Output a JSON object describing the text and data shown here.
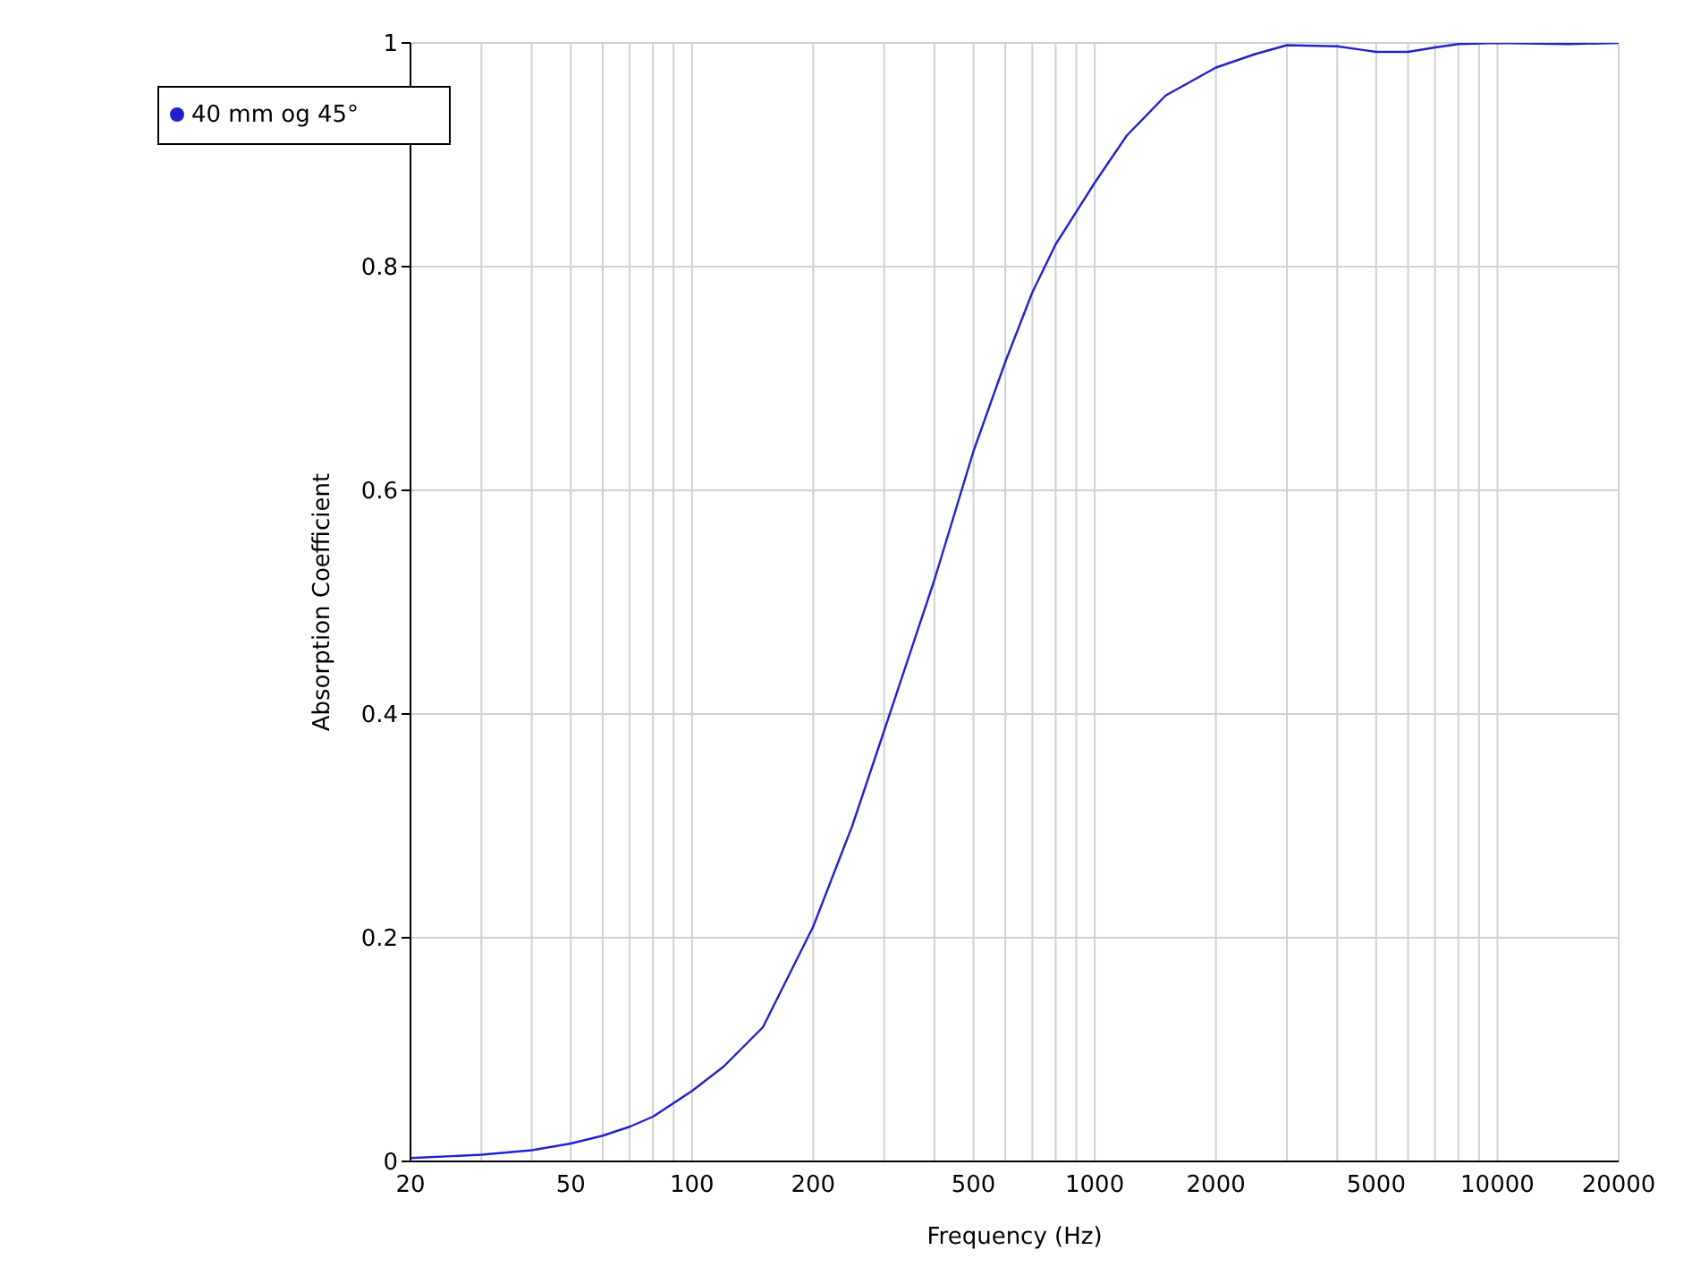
{
  "chart_data": {
    "type": "line",
    "xlabel": "Frequency (Hz)",
    "ylabel": "Absorption Coefficient",
    "log": "x",
    "grid": true,
    "legend": "top left",
    "xlim": [
      20,
      20000
    ],
    "ylim": [
      0,
      1
    ],
    "xticks": [
      20,
      {
        "value": 30,
        "label": null
      },
      {
        "value": 40,
        "label": null
      },
      50,
      {
        "value": 60,
        "label": null
      },
      {
        "value": 70,
        "label": null
      },
      {
        "value": 80,
        "label": null
      },
      {
        "value": 90,
        "label": null
      },
      100,
      200,
      {
        "value": 300,
        "label": null
      },
      {
        "value": 400,
        "label": null
      },
      500,
      {
        "value": 600,
        "label": null
      },
      {
        "value": 700,
        "label": null
      },
      {
        "value": 800,
        "label": null
      },
      {
        "value": 900,
        "label": null
      },
      1000,
      2000,
      {
        "value": 3000,
        "label": null
      },
      {
        "value": 4000,
        "label": null
      },
      5000,
      {
        "value": 6000,
        "label": null
      },
      {
        "value": 7000,
        "label": null
      },
      {
        "value": 8000,
        "label": null
      },
      {
        "value": 9000,
        "label": null
      },
      10000,
      20000
    ],
    "yticks": [
      0,
      0.2,
      0.4,
      0.6,
      0.8,
      1
    ],
    "series": [
      {
        "name": "40 mm og 45°",
        "color": "#2222cc",
        "x": [
          20,
          30,
          40,
          50,
          60,
          70,
          80,
          100,
          120,
          150,
          200,
          250,
          300,
          400,
          500,
          600,
          700,
          800,
          1000,
          1200,
          1500,
          2000,
          2500,
          3000,
          4000,
          5000,
          6000,
          7000,
          8000,
          10000,
          15000,
          20000
        ],
        "values": [
          0.003,
          0.006,
          0.01,
          0.016,
          0.023,
          0.031,
          0.04,
          0.063,
          0.085,
          0.12,
          0.21,
          0.3,
          0.385,
          0.52,
          0.635,
          0.715,
          0.777,
          0.82,
          0.875,
          0.917,
          0.953,
          0.978,
          0.99,
          0.998,
          0.997,
          0.992,
          0.992,
          0.996,
          0.999,
          1,
          0.999,
          1
        ]
      }
    ]
  }
}
